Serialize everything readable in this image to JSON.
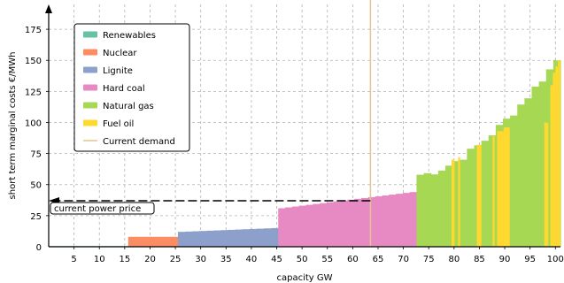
{
  "chart_data": {
    "type": "bar",
    "subtype": "merit-order-step",
    "xlabel": "capacity GW",
    "ylabel": "short term marginal costs €/MWh",
    "xlim": [
      0,
      101
    ],
    "ylim": [
      0,
      195
    ],
    "xticks": [
      5,
      10,
      15,
      20,
      25,
      30,
      35,
      40,
      45,
      50,
      55,
      60,
      65,
      70,
      75,
      80,
      85,
      90,
      95,
      100
    ],
    "yticks": [
      25,
      50,
      75,
      100,
      125,
      150,
      175
    ],
    "ytick_zero_label": "0",
    "grid": true,
    "legend_position": "top-left",
    "colors": {
      "Renewables": "#66c2a5",
      "Nuclear": "#fc8d62",
      "Lignite": "#8da0cb",
      "Hard coal": "#e78ac3",
      "Natural gas": "#a6d854",
      "Fuel oil": "#ffd92f",
      "Current demand": "#e5c494"
    },
    "series": [
      {
        "name": "Renewables",
        "x_start": 0,
        "x_end": 15.7,
        "cost": [
          0.5,
          0.5
        ]
      },
      {
        "name": "Nuclear",
        "x_start": 15.7,
        "x_end": 25.5,
        "cost": [
          8,
          8
        ]
      },
      {
        "name": "Lignite",
        "x_start": 25.5,
        "x_end": 45.3,
        "cost": [
          12,
          15
        ]
      },
      {
        "name": "Hard coal",
        "x_start": 45.3,
        "x_end": 72.6,
        "cost": [
          31,
          44
        ]
      },
      {
        "name": "Natural gas",
        "x_start": 72.6,
        "x_end": 101,
        "cost": [
          58,
          150
        ]
      },
      {
        "name": "Fuel oil",
        "x_start": 79.5,
        "x_end": 101,
        "cost": [
          70,
          150
        ]
      }
    ],
    "current_demand_gw": 63.5,
    "current_power_price": 37,
    "annotation": "current power price"
  }
}
